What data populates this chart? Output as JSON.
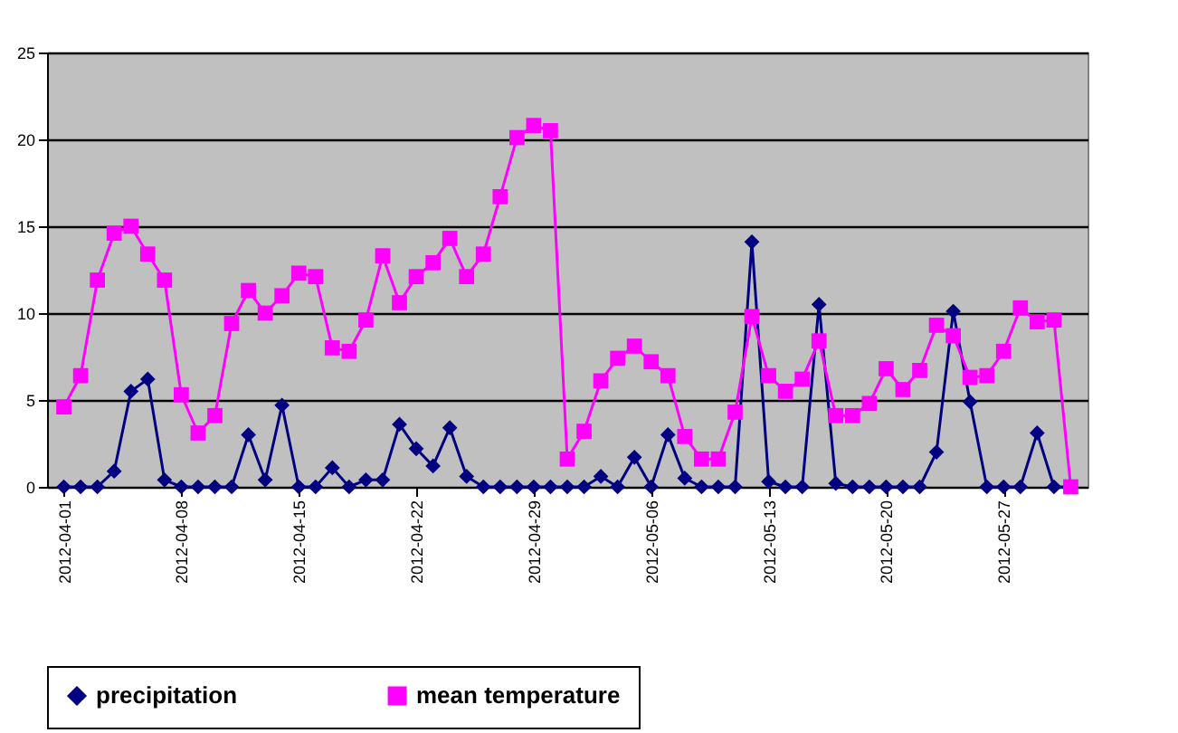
{
  "chart_data": {
    "type": "line",
    "x": [
      "2012-04-01",
      "2012-04-02",
      "2012-04-03",
      "2012-04-04",
      "2012-04-05",
      "2012-04-06",
      "2012-04-07",
      "2012-04-08",
      "2012-04-09",
      "2012-04-10",
      "2012-04-11",
      "2012-04-12",
      "2012-04-13",
      "2012-04-14",
      "2012-04-15",
      "2012-04-16",
      "2012-04-17",
      "2012-04-18",
      "2012-04-19",
      "2012-04-20",
      "2012-04-21",
      "2012-04-22",
      "2012-04-23",
      "2012-04-24",
      "2012-04-25",
      "2012-04-26",
      "2012-04-27",
      "2012-04-28",
      "2012-04-29",
      "2012-04-30",
      "2012-05-01",
      "2012-05-02",
      "2012-05-03",
      "2012-05-04",
      "2012-05-05",
      "2012-05-06",
      "2012-05-07",
      "2012-05-08",
      "2012-05-09",
      "2012-05-10",
      "2012-05-11",
      "2012-05-12",
      "2012-05-13",
      "2012-05-14",
      "2012-05-15",
      "2012-05-16",
      "2012-05-17",
      "2012-05-18",
      "2012-05-19",
      "2012-05-20",
      "2012-05-21",
      "2012-05-22",
      "2012-05-23",
      "2012-05-24",
      "2012-05-25",
      "2012-05-26",
      "2012-05-27",
      "2012-05-28",
      "2012-05-29",
      "2012-05-30",
      "2012-05-31"
    ],
    "series": [
      {
        "name": "precipitation",
        "color": "#000080",
        "marker": "diamond",
        "values": [
          0,
          0,
          0,
          0.9,
          5.5,
          6.2,
          0.4,
          0,
          0,
          0,
          0,
          3.0,
          0.4,
          4.7,
          0,
          0,
          1.1,
          0,
          0.4,
          0.4,
          3.6,
          2.2,
          1.2,
          3.4,
          0.6,
          0,
          0,
          0,
          0,
          0,
          0,
          0,
          0.6,
          0,
          1.7,
          0,
          3.0,
          0.5,
          0,
          0,
          0,
          14.1,
          0.3,
          0,
          0,
          10.5,
          0.2,
          0,
          0,
          0,
          0,
          0,
          2.0,
          10.1,
          4.9,
          0,
          0,
          0,
          3.1,
          0,
          0
        ]
      },
      {
        "name": "mean temperature",
        "color": "#ff00ff",
        "marker": "square",
        "values": [
          4.6,
          6.4,
          11.9,
          14.6,
          15.0,
          13.4,
          11.9,
          5.3,
          3.1,
          4.1,
          9.4,
          11.3,
          10.0,
          11.0,
          12.3,
          12.1,
          8.0,
          7.8,
          9.6,
          13.3,
          10.6,
          12.1,
          12.9,
          14.3,
          12.1,
          13.4,
          16.7,
          20.1,
          20.8,
          20.5,
          1.6,
          3.2,
          6.1,
          7.4,
          8.1,
          7.2,
          6.4,
          2.9,
          1.6,
          1.6,
          4.3,
          9.8,
          6.4,
          5.5,
          6.2,
          8.4,
          4.1,
          4.1,
          4.8,
          6.8,
          5.6,
          6.7,
          9.3,
          8.7,
          6.3,
          6.4,
          7.8,
          10.3,
          9.5,
          9.6,
          0
        ]
      }
    ],
    "xlim": [
      "2012-03-31",
      "2012-06-01"
    ],
    "xticks": [
      "2012-04-01",
      "2012-04-08",
      "2012-04-15",
      "2012-04-22",
      "2012-04-29",
      "2012-05-06",
      "2012-05-13",
      "2012-05-20",
      "2012-05-27"
    ],
    "ylim": [
      0,
      25
    ],
    "yticks": [
      0,
      5,
      10,
      15,
      20,
      25
    ],
    "grid": "y",
    "legend": "bottom"
  }
}
